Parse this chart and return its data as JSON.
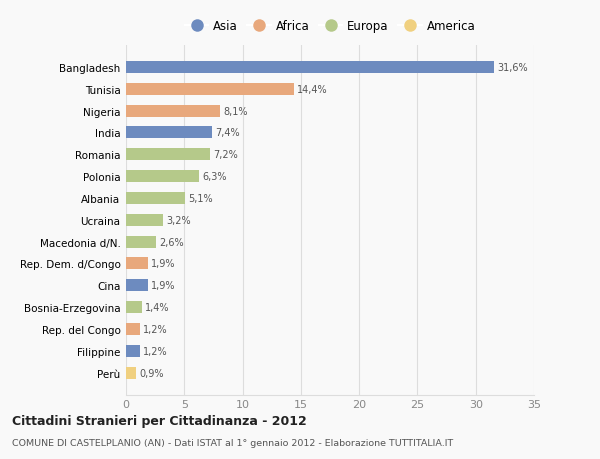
{
  "categories": [
    "Bangladesh",
    "Tunisia",
    "Nigeria",
    "India",
    "Romania",
    "Polonia",
    "Albania",
    "Ucraina",
    "Macedonia d/N.",
    "Rep. Dem. d/Congo",
    "Cina",
    "Bosnia-Erzegovina",
    "Rep. del Congo",
    "Filippine",
    "Perù"
  ],
  "values": [
    31.6,
    14.4,
    8.1,
    7.4,
    7.2,
    6.3,
    5.1,
    3.2,
    2.6,
    1.9,
    1.9,
    1.4,
    1.2,
    1.2,
    0.9
  ],
  "labels": [
    "31,6%",
    "14,4%",
    "8,1%",
    "7,4%",
    "7,2%",
    "6,3%",
    "5,1%",
    "3,2%",
    "2,6%",
    "1,9%",
    "1,9%",
    "1,4%",
    "1,2%",
    "1,2%",
    "0,9%"
  ],
  "continents": [
    "Asia",
    "Africa",
    "Africa",
    "Asia",
    "Europa",
    "Europa",
    "Europa",
    "Europa",
    "Europa",
    "Africa",
    "Asia",
    "Europa",
    "Africa",
    "Asia",
    "America"
  ],
  "continent_colors": {
    "Asia": "#6d8bbf",
    "Africa": "#e8a87c",
    "Europa": "#b5c98a",
    "America": "#f0d080"
  },
  "legend_order": [
    "Asia",
    "Africa",
    "Europa",
    "America"
  ],
  "title": "Cittadini Stranieri per Cittadinanza - 2012",
  "subtitle": "COMUNE DI CASTELPLANIO (AN) - Dati ISTAT al 1° gennaio 2012 - Elaborazione TUTTITALIA.IT",
  "xlim": [
    0,
    35
  ],
  "xticks": [
    0,
    5,
    10,
    15,
    20,
    25,
    30,
    35
  ],
  "background_color": "#f9f9f9",
  "grid_color": "#dddddd",
  "bar_height": 0.55
}
